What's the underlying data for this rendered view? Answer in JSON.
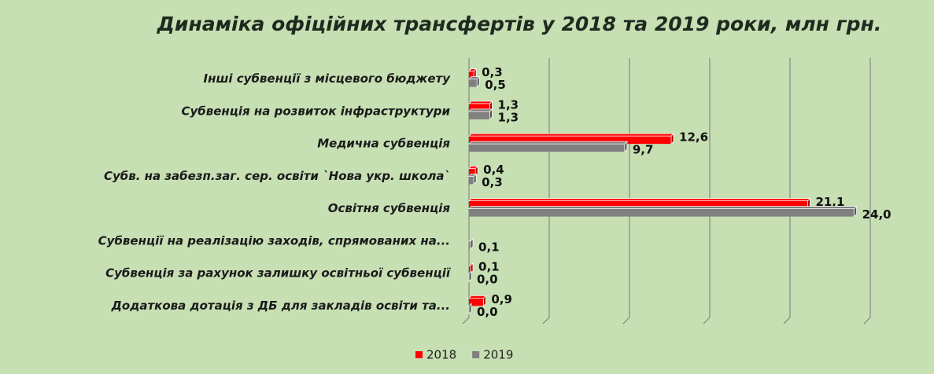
{
  "chart_data": {
    "type": "bar",
    "orientation": "horizontal",
    "title": "Динаміка офіційних трансфертів  у 2018 та 2019 роки, млн грн.",
    "categories": [
      "Інші субвенції з місцевого бюджету",
      "Субвенція на розвиток інфраструктури",
      "Медична субвенція",
      "Субв. на забезп.заг. сер. освіти `Нова укр. школа`",
      "Освітня субвенція",
      "Субвенції на реалізацію заходів, спрямованих на...",
      "Субвенція за рахунок залишку освітньої субвенції",
      "Додаткова дотація з ДБ для закладів освіти та..."
    ],
    "series": [
      {
        "name": "2018",
        "color": "#ff0000",
        "values": [
          0.3,
          1.3,
          12.6,
          0.4,
          21.1,
          null,
          0.1,
          0.9
        ],
        "value_labels": [
          "0,3",
          "1,3",
          "12,6",
          "0,4",
          "21,1",
          null,
          "0,1",
          "0,9"
        ]
      },
      {
        "name": "2019",
        "color": "#808080",
        "values": [
          0.5,
          1.3,
          9.7,
          0.3,
          24.0,
          0.1,
          0.0,
          0.0
        ],
        "value_labels": [
          "0,5",
          "1,3",
          "9,7",
          "0,3",
          "24,0",
          "0,1",
          "0,0",
          "0,0"
        ]
      }
    ],
    "xlim": [
      0,
      25
    ],
    "xticks": [
      0,
      5,
      10,
      15,
      20,
      25
    ],
    "grid": true,
    "legend": "bottom"
  }
}
